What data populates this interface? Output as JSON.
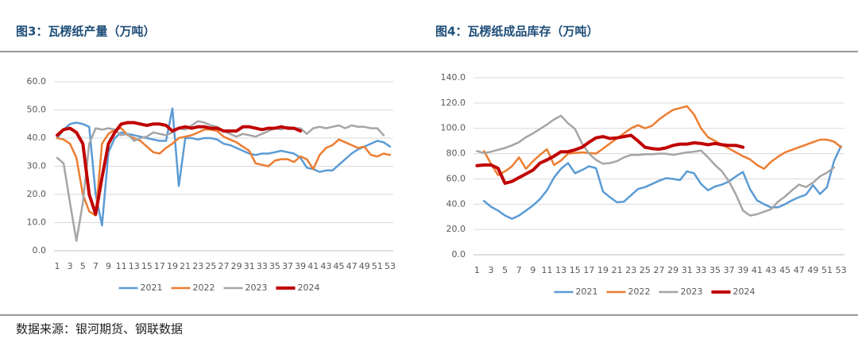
{
  "chart_data": [
    {
      "type": "line",
      "title": "图3：瓦楞纸产量（万吨）",
      "categories": [
        1,
        null,
        3,
        null,
        5,
        null,
        7,
        null,
        9,
        null,
        11,
        null,
        13,
        null,
        15,
        null,
        17,
        null,
        19,
        null,
        21,
        null,
        23,
        null,
        25,
        null,
        27,
        null,
        29,
        null,
        31,
        null,
        33,
        null,
        35,
        null,
        37,
        null,
        39,
        null,
        41,
        null,
        43,
        null,
        45,
        null,
        47,
        null,
        49,
        null,
        51,
        null,
        53
      ],
      "ylim": [
        0,
        60
      ],
      "yticks": [
        {
          "value": 0,
          "label": "0.0"
        },
        {
          "value": 10,
          "label": "10.0"
        },
        {
          "value": 20,
          "label": "20.0"
        },
        {
          "value": 30,
          "label": "30.0"
        },
        {
          "value": 40,
          "label": "40.0"
        },
        {
          "value": 50,
          "label": "50.0"
        },
        {
          "value": 60,
          "label": "60.0"
        }
      ],
      "grid": true,
      "legend": "bottom",
      "series": [
        {
          "name": "2021",
          "color": "#5b9bd5",
          "values": [
            40,
            43,
            45,
            45.5,
            45,
            44,
            20,
            9,
            35,
            40,
            42,
            41.5,
            41,
            40.5,
            40,
            39.5,
            39,
            39,
            50.5,
            23,
            40,
            40,
            39.5,
            40,
            40,
            39.5,
            38,
            37.5,
            36.5,
            35.5,
            34.5,
            34,
            34.5,
            34.5,
            35,
            35.5,
            35,
            34.5,
            33,
            29.5,
            29,
            28,
            28.5,
            28.5,
            30.5,
            32.5,
            34.5,
            36,
            37,
            38,
            39,
            38.5,
            37
          ]
        },
        {
          "name": "2022",
          "color": "#ed7d31",
          "values": [
            40,
            39.5,
            38,
            33,
            20,
            14,
            12.5,
            38,
            41.5,
            43,
            43.5,
            41,
            40,
            39,
            37,
            35,
            34.5,
            36.5,
            38,
            40,
            40.5,
            41,
            42,
            43,
            43,
            42.5,
            40.5,
            39.5,
            38.5,
            37,
            35.5,
            31,
            30.5,
            30,
            32,
            32.5,
            32.5,
            31.5,
            33.5,
            32.5,
            29,
            34,
            36.5,
            37.5,
            39.5,
            38.5,
            37.5,
            36.5,
            37,
            34,
            33.5,
            34.5,
            34
          ]
        },
        {
          "name": "2023",
          "color": "#a5a5a5",
          "values": [
            33,
            31,
            17,
            3.5,
            17,
            38,
            43.5,
            43,
            43.5,
            43,
            41,
            41.5,
            39,
            40,
            40.5,
            42,
            41.5,
            41,
            42,
            43.5,
            43,
            44.5,
            46,
            45.5,
            44.5,
            44,
            42.5,
            41.5,
            40.5,
            41.5,
            41,
            40.5,
            41.5,
            42.5,
            43.5,
            43,
            44,
            43.5,
            43.5,
            41.5,
            43.5,
            44,
            43.5,
            44,
            44.5,
            43.5,
            44.5,
            44,
            44,
            43.5,
            43.5,
            41,
            null
          ]
        },
        {
          "name": "2024",
          "color": "#c00000",
          "values": [
            41,
            43,
            43.5,
            42,
            38,
            20,
            13,
            26,
            38,
            42,
            45,
            45.5,
            45.5,
            45,
            44.5,
            45,
            45,
            44.5,
            42.5,
            43.5,
            44,
            43.5,
            44,
            44,
            43.5,
            43.5,
            42.5,
            42.5,
            42.5,
            44,
            44,
            43.5,
            43,
            43.5,
            43.5,
            44,
            43.5,
            43.5,
            42.5,
            null,
            null,
            null,
            null,
            null,
            null,
            null,
            null,
            null,
            null,
            null,
            null,
            null,
            null
          ]
        }
      ]
    },
    {
      "type": "line",
      "title": "图4：瓦楞纸成品库存（万吨）",
      "categories": [
        1,
        null,
        3,
        null,
        5,
        null,
        7,
        null,
        9,
        null,
        11,
        null,
        13,
        null,
        15,
        null,
        17,
        null,
        19,
        null,
        21,
        null,
        23,
        null,
        25,
        null,
        27,
        null,
        29,
        null,
        31,
        null,
        33,
        null,
        35,
        null,
        37,
        null,
        39,
        null,
        41,
        null,
        43,
        null,
        45,
        null,
        47,
        null,
        49,
        null,
        51,
        null,
        53
      ],
      "ylim": [
        0,
        140
      ],
      "yticks": [
        {
          "value": 0,
          "label": "0.0"
        },
        {
          "value": 20,
          "label": "20.0"
        },
        {
          "value": 40,
          "label": "40.0"
        },
        {
          "value": 60,
          "label": "60.0"
        },
        {
          "value": 80,
          "label": "80.0"
        },
        {
          "value": 100,
          "label": "100.0"
        },
        {
          "value": 120,
          "label": "120.0"
        },
        {
          "value": 140,
          "label": "140.0"
        }
      ],
      "grid": true,
      "legend": "bottom",
      "series": [
        {
          "name": "2021",
          "color": "#5b9bd5",
          "values": [
            null,
            42.5,
            38,
            35,
            31,
            28.5,
            31,
            35,
            39,
            44,
            51,
            61,
            68,
            72.5,
            64.5,
            67,
            70,
            68.5,
            50,
            45.5,
            41.5,
            42,
            47,
            52,
            53.5,
            56,
            58.5,
            60.5,
            60,
            59,
            66,
            64.5,
            56,
            51,
            54,
            55.5,
            58,
            62,
            65.5,
            52,
            43,
            40,
            37.5,
            37.5,
            40,
            43,
            45.5,
            47.5,
            55,
            48,
            53.5,
            74,
            86
          ]
        },
        {
          "name": "2022",
          "color": "#ed7d31",
          "values": [
            null,
            82,
            72,
            63,
            66,
            70,
            77,
            68,
            74,
            79,
            83.5,
            71,
            74.5,
            80,
            80.5,
            81,
            80.5,
            80,
            84,
            88,
            92,
            96,
            100,
            102.5,
            100,
            102,
            107,
            111,
            114.5,
            116,
            117.5,
            111,
            100,
            93,
            90,
            87,
            84,
            81,
            78,
            75.5,
            71,
            68,
            73.5,
            77.5,
            81,
            83,
            85,
            87,
            89,
            91,
            91,
            89.5,
            85
          ]
        },
        {
          "name": "2023",
          "color": "#a5a5a5",
          "values": [
            82,
            80.5,
            81.5,
            83,
            84.5,
            86.5,
            89,
            93,
            96,
            99.5,
            103,
            107,
            110,
            104,
            99.5,
            88,
            80,
            75,
            72,
            72.5,
            74,
            77,
            79,
            79,
            79.5,
            79.5,
            80,
            80,
            79,
            80,
            81,
            81.5,
            82.5,
            77,
            71,
            66,
            58,
            47.5,
            35,
            31,
            32,
            34,
            36,
            42,
            46,
            51,
            55.5,
            53.5,
            57,
            62,
            65,
            69,
            null
          ]
        },
        {
          "name": "2024",
          "color": "#c00000",
          "values": [
            70.5,
            71,
            71,
            68.5,
            56.5,
            58,
            61,
            64,
            67,
            72.5,
            75,
            78,
            81.5,
            81.5,
            83,
            85,
            89,
            92.5,
            93.5,
            92,
            92.5,
            93.5,
            94.5,
            90,
            85,
            84,
            83.5,
            84.5,
            86.5,
            87.5,
            87.5,
            88.5,
            88,
            87,
            88,
            87,
            86.5,
            86.5,
            85,
            null,
            null,
            null,
            null,
            null,
            null,
            null,
            null,
            null,
            null,
            null,
            null,
            null,
            null
          ]
        }
      ]
    }
  ],
  "source": "数据来源：银河期货、钢联数据"
}
